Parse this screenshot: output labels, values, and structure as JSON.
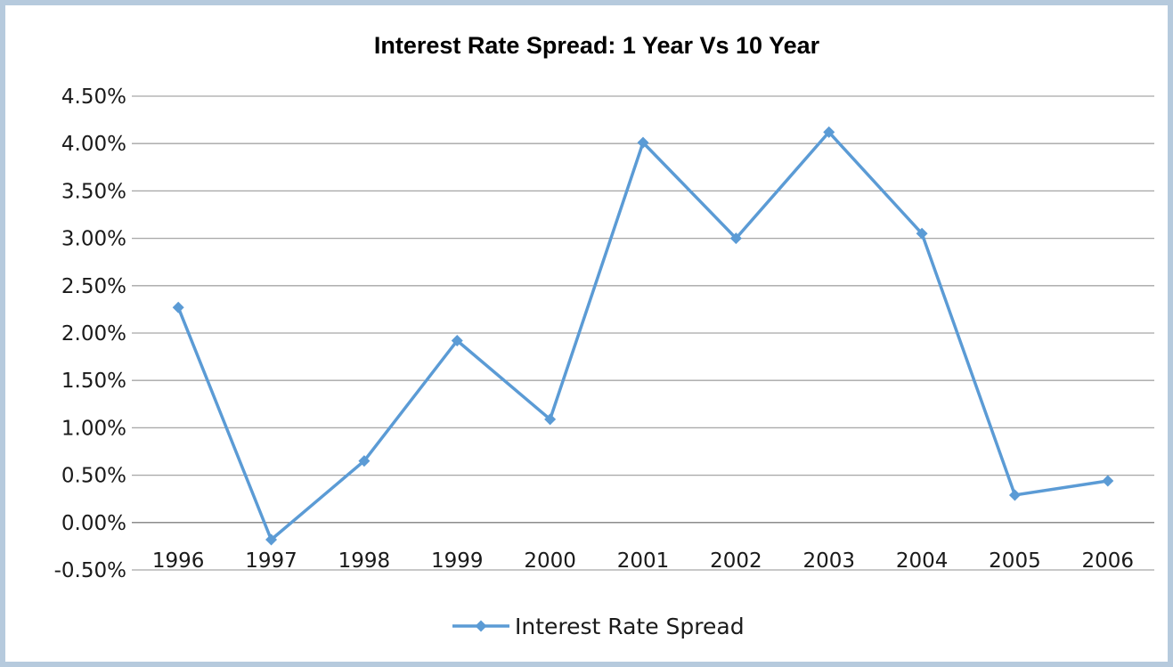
{
  "chart_data": {
    "type": "line",
    "title": "Interest Rate Spread: 1 Year Vs 10 Year",
    "xlabel": "",
    "ylabel": "",
    "categories": [
      "1996",
      "1997",
      "1998",
      "1999",
      "2000",
      "2001",
      "2002",
      "2003",
      "2004",
      "2005",
      "2006"
    ],
    "series": [
      {
        "name": "Interest Rate Spread",
        "color": "#5b9bd5",
        "values": [
          2.27,
          -0.18,
          0.65,
          1.92,
          1.09,
          4.01,
          3.0,
          4.12,
          3.05,
          0.29,
          0.44
        ]
      }
    ],
    "ylim": [
      -0.5,
      4.5
    ],
    "yticks": [
      4.5,
      4.0,
      3.5,
      3.0,
      2.5,
      2.0,
      1.5,
      1.0,
      0.5,
      0.0,
      -0.5
    ],
    "ytick_labels": [
      "4.50%",
      "4.00%",
      "3.50%",
      "3.00%",
      "2.50%",
      "2.00%",
      "1.50%",
      "1.00%",
      "0.50%",
      "0.00%",
      "-0.50%"
    ],
    "grid": true,
    "legend_position": "bottom",
    "marker": "diamond",
    "gridline_color": "#a6a6a6"
  }
}
